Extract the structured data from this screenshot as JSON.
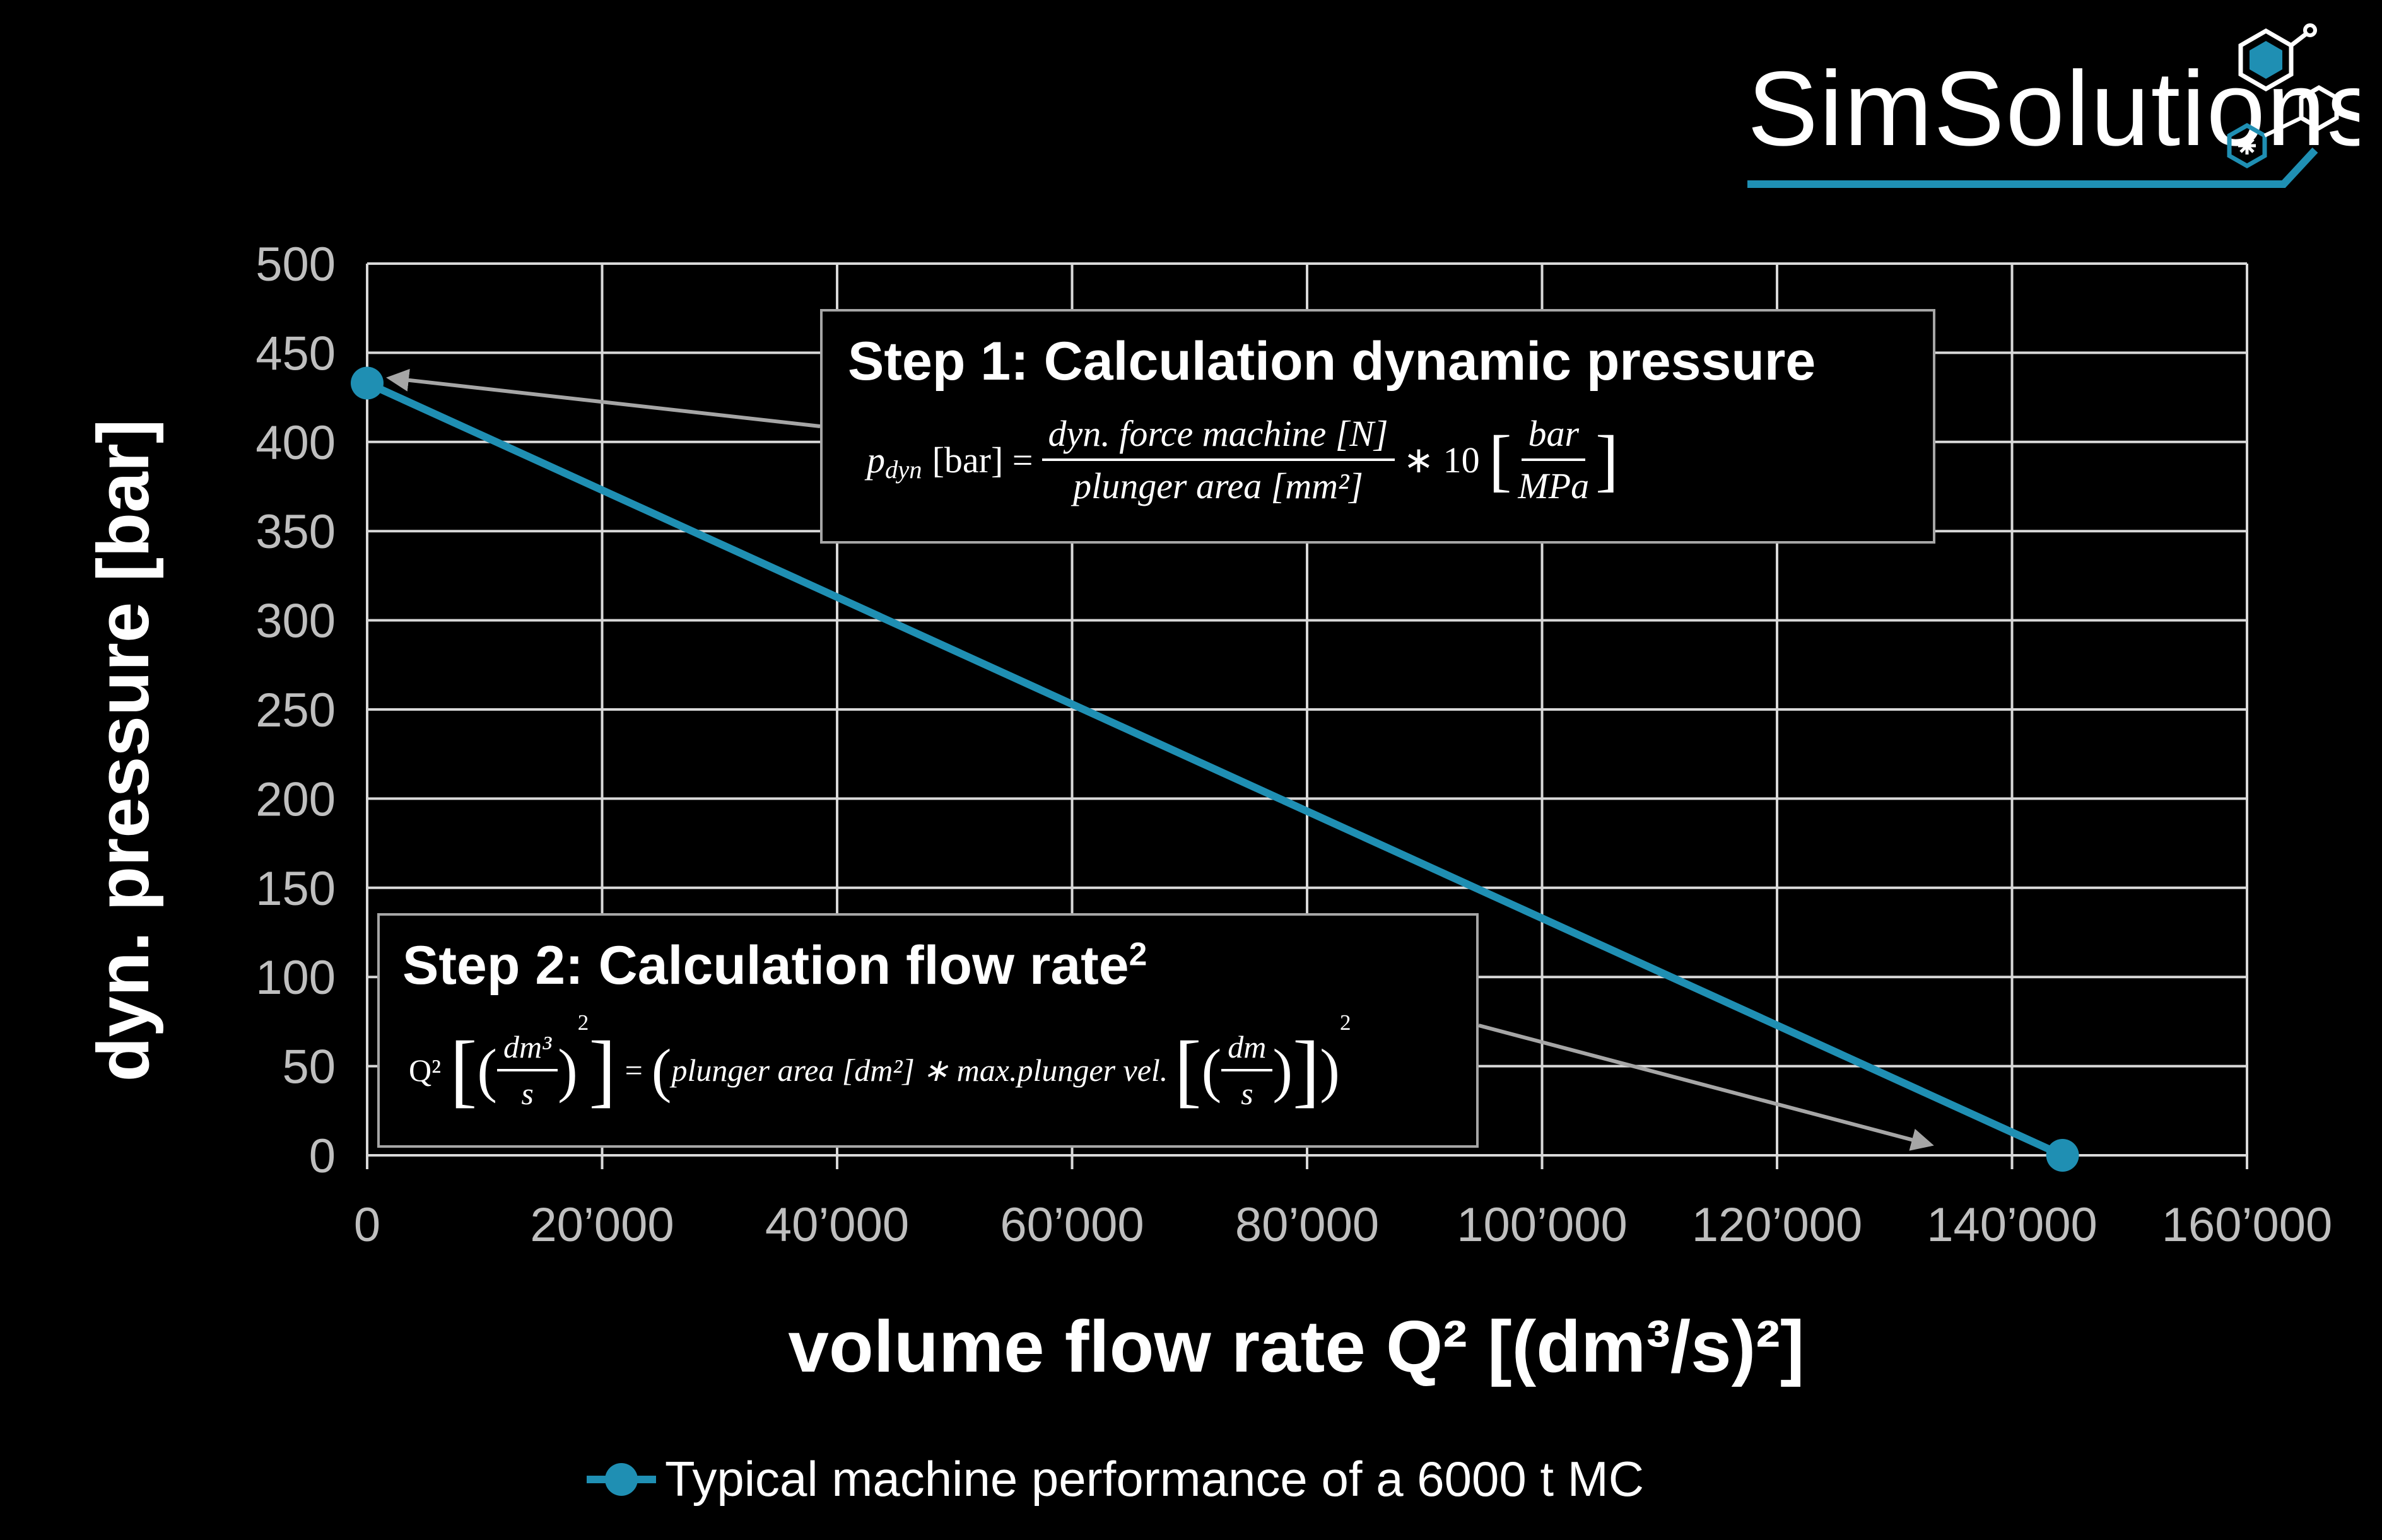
{
  "chart_data": {
    "type": "line",
    "title": "",
    "xlabel": "volume flow rate Q² [(dm³/s)²]",
    "ylabel": "dyn. pressure [bar]",
    "xlim": [
      0,
      160000
    ],
    "ylim": [
      0,
      500
    ],
    "x_ticks": [
      0,
      20000,
      40000,
      60000,
      80000,
      100000,
      120000,
      140000,
      160000
    ],
    "x_tick_labels": [
      "0",
      "20’000",
      "40’000",
      "60’000",
      "80’000",
      "100’000",
      "120’000",
      "140’000",
      "160’000"
    ],
    "y_ticks": [
      0,
      50,
      100,
      150,
      200,
      250,
      300,
      350,
      400,
      450,
      500
    ],
    "y_tick_labels": [
      "0",
      "50",
      "100",
      "150",
      "200",
      "250",
      "300",
      "350",
      "400",
      "450",
      "500"
    ],
    "grid": true,
    "legend_position": "bottom",
    "series": [
      {
        "name": "Typical machine performance of a 6000 t MC",
        "color": "#1f8fb3",
        "x": [
          0,
          144300
        ],
        "y": [
          433,
          0
        ]
      }
    ],
    "annotations": [
      {
        "title": "Step 1: Calculation dynamic pressure",
        "formula": {
          "lhs": "p",
          "lhs_sub": "dyn",
          "lhs_unit": "[bar] =",
          "num": "dyn. force machine [N]",
          "den": "plunger area [mm²]",
          "times": "∗ 10",
          "unit_num": "bar",
          "unit_den": "MPa"
        }
      },
      {
        "title": "Step 2: Calculation flow rate",
        "title_sup": "2",
        "formula": {
          "lhs": "Q²",
          "unit_num": "dm³",
          "unit_den": "s",
          "sq": "2",
          "eq": "=",
          "term1": "plunger area [dm²] ∗  max.plunger vel.",
          "vel_num": "dm",
          "vel_den": "s",
          "sq2": "2"
        }
      }
    ]
  },
  "logo": {
    "text": "SimSolutions",
    "accent_color": "#1f8fb3"
  }
}
